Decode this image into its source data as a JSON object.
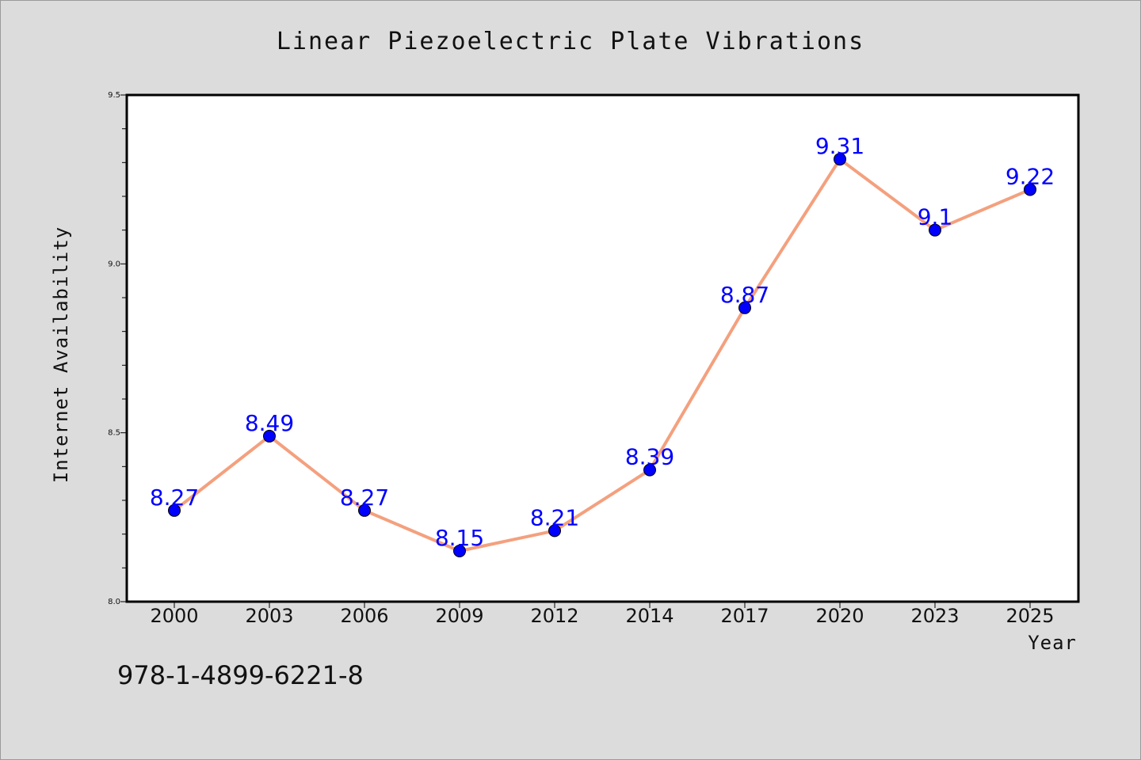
{
  "chart_data": {
    "type": "line",
    "title": "Linear Piezoelectric Plate Vibrations",
    "xlabel": "Year",
    "ylabel": "Internet Availability",
    "categories": [
      "2000",
      "2003",
      "2006",
      "2009",
      "2012",
      "2014",
      "2017",
      "2020",
      "2023",
      "2025"
    ],
    "series": [
      {
        "values": [
          8.27,
          8.49,
          8.27,
          8.15,
          8.21,
          8.39,
          8.87,
          9.31,
          9.1,
          9.22
        ],
        "data_labels": [
          "8.27",
          "8.49",
          "8.27",
          "8.15",
          "8.21",
          "8.39",
          "8.87",
          "9.31",
          "9.1",
          "9.22"
        ]
      }
    ],
    "ylim": [
      8.0,
      9.5
    ],
    "yticks": [
      "8.0",
      "8.5",
      "9.0",
      "9.5"
    ],
    "grid": false,
    "colors": {
      "line": "#f4a07e",
      "marker": "#0000ff",
      "label": "#0000ff",
      "plot_bg": "#ffffff",
      "page_bg": "#dcdcdc"
    }
  },
  "annotation": "978-1-4899-6221-8"
}
